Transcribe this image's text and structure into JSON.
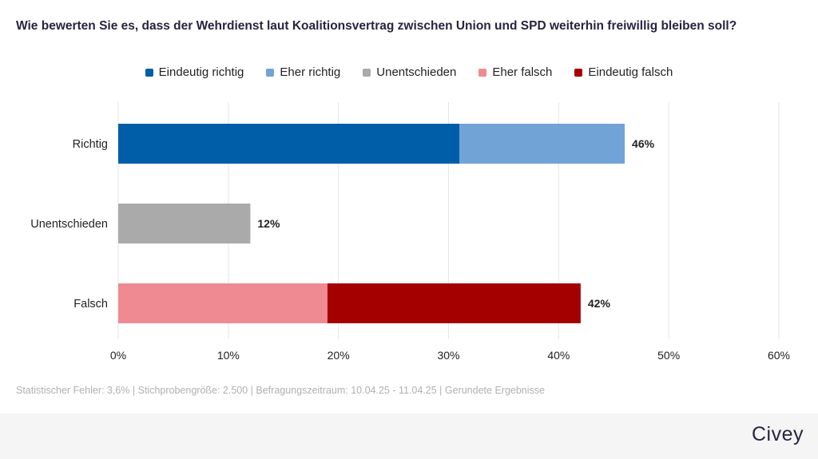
{
  "title": "Wie bewerten Sie es, dass der Wehrdienst laut Koalitionsvertrag zwischen Union und SPD weiterhin freiwillig bleiben soll?",
  "legend": [
    {
      "label": "Eindeutig richtig",
      "color": "#005ea8"
    },
    {
      "label": "Eher richtig",
      "color": "#72a3d6"
    },
    {
      "label": "Unentschieden",
      "color": "#aaaaaa"
    },
    {
      "label": "Eher falsch",
      "color": "#ef8a92"
    },
    {
      "label": "Eindeutig falsch",
      "color": "#a50000"
    }
  ],
  "chart_data": {
    "type": "bar",
    "orientation": "horizontal",
    "stacked": true,
    "categories": [
      "Richtig",
      "Unentschieden",
      "Falsch"
    ],
    "series": [
      {
        "name": "Eindeutig richtig",
        "color": "#005ea8",
        "values": [
          31,
          0,
          0
        ]
      },
      {
        "name": "Eher richtig",
        "color": "#72a3d6",
        "values": [
          15,
          0,
          0
        ]
      },
      {
        "name": "Unentschieden",
        "color": "#aaaaaa",
        "values": [
          0,
          12,
          0
        ]
      },
      {
        "name": "Eher falsch",
        "color": "#ef8a92",
        "values": [
          0,
          0,
          19
        ]
      },
      {
        "name": "Eindeutig falsch",
        "color": "#a50000",
        "values": [
          0,
          0,
          23
        ]
      }
    ],
    "totals": [
      "46%",
      "12%",
      "42%"
    ],
    "xlim": [
      0,
      60
    ],
    "xticks": [
      "0%",
      "10%",
      "20%",
      "30%",
      "40%",
      "50%",
      "60%"
    ],
    "grid": true,
    "legend_position": "top"
  },
  "footnote": "Statistischer Fehler: 3,6% | Stichprobengröße: 2.500 | Befragungszeitraum: 10.04.25 - 11.04.25 | Gerundete Ergebnisse",
  "brand": "Civey"
}
